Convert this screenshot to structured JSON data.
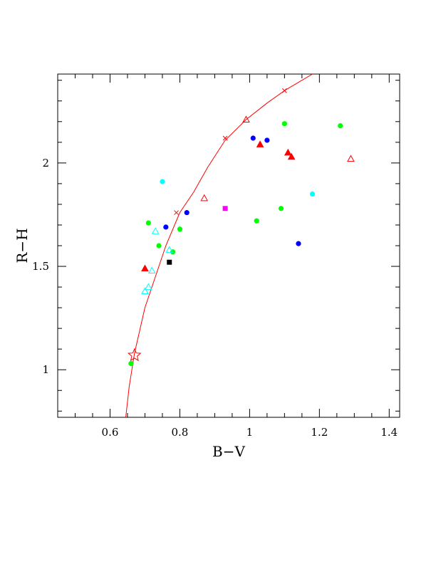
{
  "chart_data": {
    "type": "scatter",
    "title": "",
    "xlabel": "B−V",
    "ylabel": "R−H",
    "xlim": [
      0.45,
      1.43
    ],
    "ylim": [
      0.77,
      2.43
    ],
    "x_ticks": [
      0.6,
      0.8,
      1.0,
      1.2,
      1.4
    ],
    "x_tick_labels": [
      "0.6",
      "0.8",
      "1",
      "1.2",
      "1.4"
    ],
    "y_ticks": [
      1.0,
      1.5,
      2.0
    ],
    "y_tick_labels": [
      "1",
      "1.5",
      "2"
    ],
    "grid": false,
    "legend": "none",
    "curve": {
      "color": "#ff0000",
      "points": [
        [
          0.645,
          0.77
        ],
        [
          0.655,
          0.92
        ],
        [
          0.67,
          1.08
        ],
        [
          0.7,
          1.3
        ],
        [
          0.73,
          1.45
        ],
        [
          0.76,
          1.6
        ],
        [
          0.8,
          1.76
        ],
        [
          0.84,
          1.86
        ],
        [
          0.88,
          1.98
        ],
        [
          0.93,
          2.11
        ],
        [
          0.99,
          2.21
        ],
        [
          1.05,
          2.29
        ],
        [
          1.1,
          2.35
        ],
        [
          1.14,
          2.39
        ],
        [
          1.18,
          2.43
        ]
      ],
      "marks": [
        [
          0.79,
          1.76
        ],
        [
          0.93,
          2.12
        ],
        [
          1.1,
          2.35
        ]
      ]
    },
    "sun": {
      "x": 0.67,
      "y": 1.07,
      "color": "#ff0000",
      "marker": "star-open"
    },
    "series": [
      {
        "marker": "circle",
        "color": "#00ff00",
        "x": [
          0.66,
          0.71,
          0.74,
          0.78,
          0.8,
          1.02,
          1.09,
          1.1,
          1.26
        ],
        "y": [
          1.03,
          1.71,
          1.6,
          1.57,
          1.68,
          1.72,
          1.78,
          2.19,
          2.18
        ]
      },
      {
        "marker": "circle",
        "color": "#0000ff",
        "x": [
          0.76,
          0.82,
          1.01,
          1.05,
          1.14
        ],
        "y": [
          1.69,
          1.76,
          2.12,
          2.11,
          1.61
        ]
      },
      {
        "marker": "circle",
        "color": "#00ffff",
        "x": [
          0.75,
          1.18
        ],
        "y": [
          1.91,
          1.85
        ]
      },
      {
        "marker": "triangle-filled",
        "color": "#ff0000",
        "x": [
          0.7,
          1.03,
          1.11,
          1.12
        ],
        "y": [
          1.49,
          2.09,
          2.05,
          2.03
        ]
      },
      {
        "marker": "triangle-open",
        "color": "#ff0000",
        "x": [
          0.87,
          0.99,
          1.29
        ],
        "y": [
          1.83,
          2.21,
          2.02
        ]
      },
      {
        "marker": "triangle-open",
        "color": "#00ffff",
        "x": [
          0.7,
          0.71,
          0.72,
          0.73,
          0.77
        ],
        "y": [
          1.38,
          1.4,
          1.48,
          1.67,
          1.58
        ]
      },
      {
        "marker": "square",
        "color": "#000000",
        "x": [
          0.77
        ],
        "y": [
          1.52
        ]
      },
      {
        "marker": "square",
        "color": "#ff00ff",
        "x": [
          0.93
        ],
        "y": [
          1.78
        ]
      }
    ]
  }
}
